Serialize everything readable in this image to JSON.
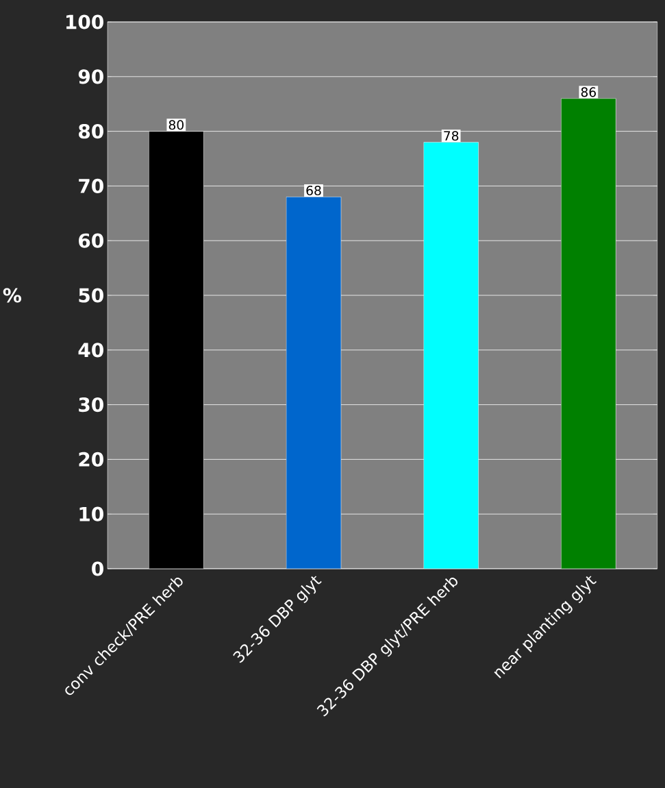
{
  "chart_data": {
    "type": "bar",
    "ylabel": "%",
    "categories": [
      "conv check/PRE herb",
      "32-36 DBP glyt",
      "32-36 DBP glyt/PRE herb",
      "near planting glyt"
    ],
    "values": [
      80,
      68,
      78,
      86
    ],
    "colors": [
      "#000000",
      "#0066cc",
      "#00ffff",
      "#008000"
    ],
    "ylim": [
      0,
      100
    ],
    "yticks": [
      0,
      10,
      20,
      30,
      40,
      50,
      60,
      70,
      80,
      90,
      100
    ],
    "grid": "y",
    "data_labels": true
  }
}
